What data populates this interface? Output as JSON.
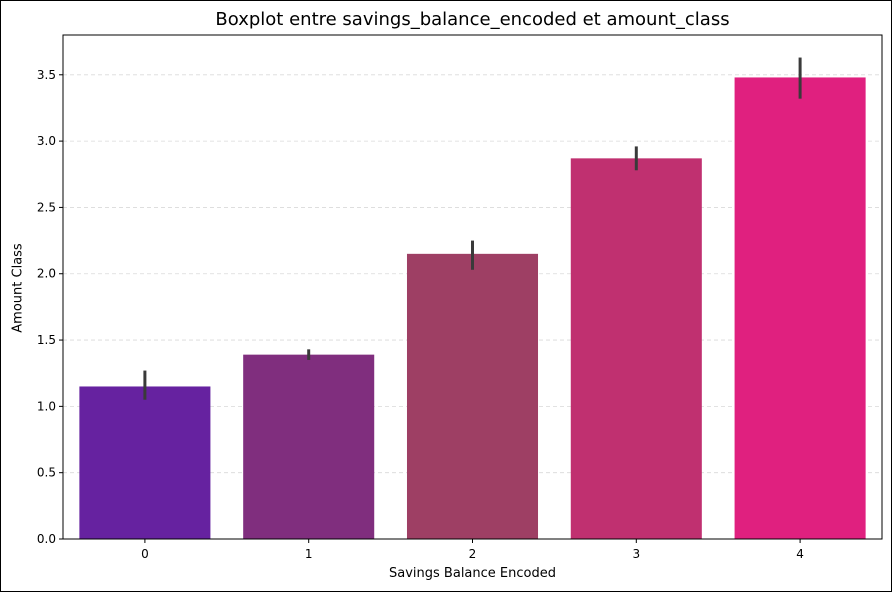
{
  "chart_data": {
    "type": "bar",
    "title": "Boxplot entre savings_balance_encoded et amount_class",
    "xlabel": "Savings Balance Encoded",
    "ylabel": "Amount Class",
    "categories": [
      "0",
      "1",
      "2",
      "3",
      "4"
    ],
    "values": [
      1.15,
      1.39,
      2.15,
      2.87,
      3.48
    ],
    "error_bars": [
      [
        1.05,
        1.27
      ],
      [
        1.35,
        1.43
      ],
      [
        2.03,
        2.25
      ],
      [
        2.78,
        2.96
      ],
      [
        3.32,
        3.63
      ]
    ],
    "ylim": [
      0,
      3.8
    ],
    "yticks": [
      "0.0",
      "0.5",
      "1.0",
      "1.5",
      "2.0",
      "2.5",
      "3.0",
      "3.5"
    ],
    "grid": "horizontal dashed",
    "colors": [
      "#6622a0",
      "#802e7e",
      "#9e3f64",
      "#c03070",
      "#e0207f"
    ],
    "error_bar_color": "#3a3a3a"
  }
}
